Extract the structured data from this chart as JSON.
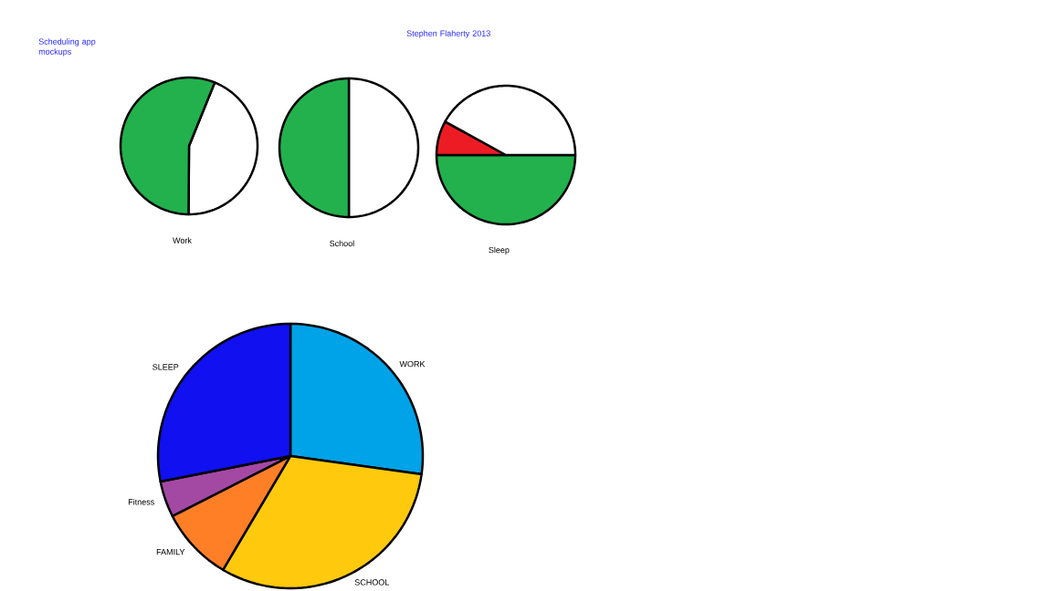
{
  "chart_data": [
    {
      "type": "pie",
      "title": "Work",
      "categories": [
        null,
        null
      ],
      "values": [
        44,
        56
      ],
      "colors": [
        "#ffffff",
        "#22b14c"
      ],
      "annotations": [
        "Scheduling app mockups",
        "Stephen Flaherty 2013"
      ]
    },
    {
      "type": "pie",
      "title": "School",
      "categories": [
        null,
        null
      ],
      "values": [
        50,
        50
      ],
      "colors": [
        "#ffffff",
        "#22b14c"
      ]
    },
    {
      "type": "pie",
      "title": "Sleep",
      "categories": [
        null,
        null,
        null
      ],
      "values": [
        50,
        8,
        42
      ],
      "colors": [
        "#22b14c",
        "#ed1c24",
        "#ffffff"
      ]
    },
    {
      "type": "pie",
      "categories": [
        "WORK",
        "SCHOOL",
        "FAMILY",
        "Fitness",
        "SLEEP"
      ],
      "values": [
        27.2,
        31.3,
        9.0,
        4.4,
        28.1
      ],
      "colors": [
        "#00a2e8",
        "#ffc90e",
        "#ff7f27",
        "#a349a4",
        "#1010f0"
      ]
    }
  ]
}
